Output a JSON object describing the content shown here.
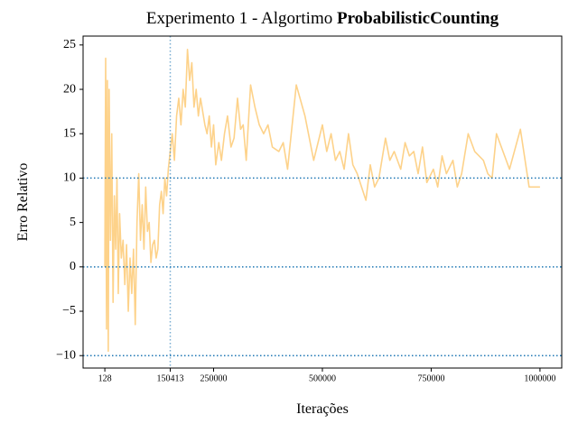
{
  "chart_data": {
    "type": "line",
    "title": "Experimento 1 - Algortimo",
    "title_bold": "ProbabilisticCounting",
    "xlabel": "Iterações",
    "ylabel": "Erro Relativo",
    "x": [
      128,
      2000,
      4000,
      6000,
      8000,
      10000,
      13000,
      16000,
      19000,
      22000,
      25000,
      28000,
      31000,
      34000,
      38000,
      42000,
      46000,
      50000,
      54000,
      58000,
      62000,
      66000,
      70000,
      74000,
      78000,
      82000,
      86000,
      90000,
      94000,
      98000,
      102000,
      106000,
      110000,
      114000,
      118000,
      122000,
      126000,
      130000,
      134000,
      138000,
      142000,
      146000,
      150413,
      155000,
      160000,
      165000,
      170000,
      175000,
      180000,
      185000,
      190000,
      195000,
      200000,
      205000,
      210000,
      215000,
      220000,
      230000,
      235000,
      240000,
      245000,
      250000,
      255000,
      262000,
      268000,
      275000,
      282000,
      290000,
      297000,
      305000,
      312000,
      318000,
      325000,
      335000,
      345000,
      355000,
      365000,
      375000,
      385000,
      400000,
      410000,
      420000,
      440000,
      460000,
      480000,
      500000,
      510000,
      520000,
      530000,
      540000,
      550000,
      560000,
      570000,
      580000,
      600000,
      610000,
      620000,
      630000,
      645000,
      655000,
      665000,
      680000,
      690000,
      700000,
      710000,
      720000,
      730000,
      740000,
      755000,
      765000,
      775000,
      785000,
      800000,
      810000,
      820000,
      835000,
      850000,
      870000,
      880000,
      890000,
      900000,
      930000,
      955000,
      975000,
      1000000
    ],
    "series": [
      {
        "color": "#fdd28a",
        "values": [
          0,
          23.5,
          -7,
          21,
          -9.5,
          20,
          3,
          15,
          -4,
          8,
          2,
          10,
          -3,
          6,
          1,
          3,
          -2,
          2.5,
          -5,
          1,
          -3,
          2,
          -6.5,
          5,
          10.5,
          3,
          7,
          2,
          9,
          4,
          5,
          0.5,
          2.5,
          3,
          1,
          2,
          7,
          8.5,
          6,
          10,
          8,
          11,
          13,
          15,
          12,
          17,
          19,
          16,
          20,
          18,
          24.5,
          21,
          23,
          18,
          20,
          17,
          19,
          16,
          15,
          17,
          13.5,
          16,
          11.5,
          14,
          12,
          15,
          17,
          13.5,
          14.5,
          19,
          15.5,
          16,
          12,
          20.5,
          18,
          16,
          15,
          16,
          13.5,
          13,
          14,
          11,
          20.5,
          17,
          12,
          16,
          13,
          15,
          12,
          13,
          11,
          15,
          11.5,
          10.5,
          7.5,
          11.5,
          9,
          10,
          14.5,
          12,
          13,
          11,
          14,
          12.5,
          13,
          10.5,
          13.5,
          9.5,
          11,
          9,
          12.5,
          10.5,
          12,
          9,
          10.5,
          15,
          13,
          12,
          10.5,
          10,
          15,
          11,
          15.5,
          9,
          9
        ]
      }
    ],
    "hlines": [
      10,
      0,
      -10
    ],
    "vline": 150413,
    "refline_color": "#1f77b4",
    "xlim": [
      -49866,
      1049994
    ],
    "ylim": [
      -11.4,
      26
    ],
    "xticks": [
      128,
      150413,
      250000,
      500000,
      750000,
      1000000
    ],
    "yticks": [
      {
        "value": -10,
        "label": "−10"
      },
      {
        "value": -5,
        "label": "−5"
      },
      0,
      5,
      10,
      15,
      20,
      25
    ]
  }
}
